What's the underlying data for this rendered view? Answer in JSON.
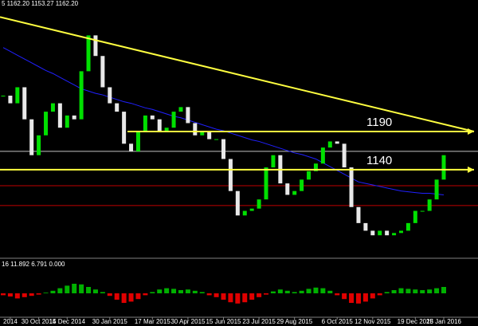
{
  "chart_data": {
    "type": "candlestick",
    "header": "5 1162.20 1153.27 1162.20",
    "indicator_label": "16 11.892 6.791 0.000",
    "categories": [
      null,
      "2014",
      null,
      null,
      null,
      "30 Oct 2014",
      null,
      null,
      null,
      "15 Dec 2014",
      null,
      null,
      null,
      null,
      null,
      "30 Jan 2015",
      null,
      null,
      null,
      null,
      null,
      "17 Mar 2015",
      null,
      null,
      null,
      null,
      "30 Apr 2015",
      null,
      null,
      null,
      null,
      "15 Jun 2015",
      null,
      null,
      null,
      null,
      "23 Jul 2015",
      null,
      null,
      null,
      null,
      "29 Aug 2015",
      null,
      null,
      null,
      null,
      null,
      "6 Oct 2015",
      null,
      null,
      null,
      null,
      "12 Nov 2015",
      null,
      null,
      null,
      null,
      null,
      "19 Dec 2015",
      null,
      null,
      null,
      "28 Jan 2016"
    ],
    "closes": [
      1237,
      1227,
      1248,
      1206,
      1159,
      1185,
      1216,
      1227,
      1195,
      1211,
      1206,
      1269,
      1316,
      1289,
      1248,
      1227,
      1216,
      1174,
      1164,
      1190,
      1211,
      1206,
      1190,
      1195,
      1216,
      1222,
      1201,
      1185,
      1190,
      1180,
      1180,
      1154,
      1112,
      1080,
      1086,
      1089,
      1101,
      1143,
      1159,
      1122,
      1107,
      1112,
      1127,
      1138,
      1148,
      1169,
      1177,
      1174,
      1143,
      1091,
      1070,
      1060,
      1054,
      1060,
      1054,
      1057,
      1060,
      1070,
      1086,
      1086,
      1101,
      1127,
      1159
    ],
    "up_color": "#00e000",
    "down_color": "#e8e8e8",
    "ma": {
      "color": "#2020ff",
      "values": [
        1300,
        1295,
        1290,
        1285,
        1280,
        1275,
        1270,
        1266,
        1261,
        1256,
        1251,
        1246,
        1243,
        1240,
        1238,
        1235,
        1232,
        1229,
        1227,
        1224,
        1221,
        1219,
        1216,
        1213,
        1210,
        1208,
        1205,
        1202,
        1199,
        1196,
        1193,
        1191,
        1188,
        1185,
        1182,
        1179,
        1177,
        1174,
        1171,
        1168,
        1165,
        1162,
        1160,
        1157,
        1154,
        1149,
        1144,
        1139,
        1134,
        1129,
        1124,
        1122,
        1120,
        1118,
        1116,
        1114,
        1112,
        1111,
        1110,
        1109,
        1109,
        1108,
        1107
      ]
    },
    "ylim": [
      1026,
      1354
    ],
    "trendline": {
      "color": "#ffff40",
      "values": [
        1340,
        1190
      ]
    },
    "levels": [
      1190,
      1140
    ],
    "level_color": "#ffff40",
    "hlines": [
      {
        "value": 1164,
        "color": "#c0c0c0"
      },
      {
        "value": 1119,
        "color": "#c00000"
      },
      {
        "value": 1093,
        "color": "#c00000"
      }
    ],
    "osc": {
      "ylim": [
        -35,
        35
      ],
      "pos_color": "#00b000",
      "neg_color": "#e00000",
      "values": [
        -3,
        -5,
        -8,
        -6,
        -4,
        -2,
        1,
        4,
        8,
        12,
        15,
        14,
        10,
        6,
        2,
        -4,
        -10,
        -15,
        -13,
        -9,
        -3,
        2,
        6,
        8,
        7,
        5,
        6,
        4,
        2,
        -3,
        -6,
        -10,
        -14,
        -16,
        -14,
        -10,
        -6,
        -2,
        3,
        6,
        4,
        2,
        4,
        7,
        9,
        8,
        4,
        -3,
        -9,
        -15,
        -16,
        -13,
        -8,
        -3,
        2,
        5,
        8,
        7,
        6,
        5,
        6,
        8,
        10
      ]
    }
  }
}
